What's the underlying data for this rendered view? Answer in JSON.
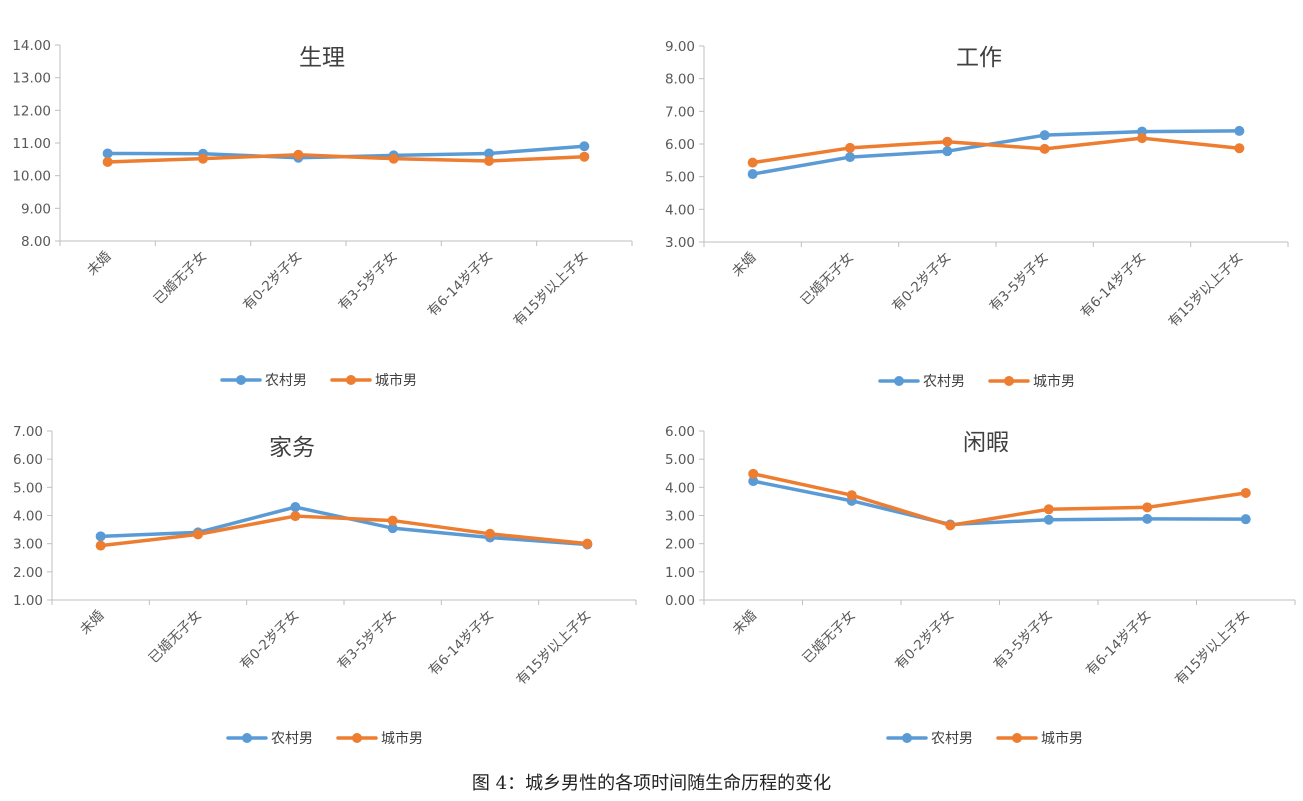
{
  "colors": {
    "rural": "#5b9bd5",
    "urban": "#ed7d31",
    "axis": "#bfbfbf",
    "text": "#595959"
  },
  "chart_data": [
    {
      "type": "line",
      "title": "生理",
      "categories": [
        "未婚",
        "已婚无子女",
        "有0-2岁子女",
        "有3-5岁子女",
        "有6-14岁子女",
        "有15岁以上子女"
      ],
      "ylim": [
        8,
        14
      ],
      "yticks": [
        "8.00",
        "9.00",
        "10.00",
        "11.00",
        "12.00",
        "13.00",
        "14.00"
      ],
      "grid": false,
      "legend": "bottom",
      "series": [
        {
          "name": "农村男",
          "values": [
            10.68,
            10.67,
            10.55,
            10.62,
            10.68,
            10.9
          ]
        },
        {
          "name": "城市男",
          "values": [
            10.42,
            10.52,
            10.64,
            10.52,
            10.45,
            10.58
          ]
        }
      ]
    },
    {
      "type": "line",
      "title": "工作",
      "categories": [
        "未婚",
        "已婚无子女",
        "有0-2岁子女",
        "有3-5岁子女",
        "有6-14岁子女",
        "有15岁以上子女"
      ],
      "ylim": [
        3,
        9
      ],
      "yticks": [
        "3.00",
        "4.00",
        "5.00",
        "6.00",
        "7.00",
        "8.00",
        "9.00"
      ],
      "grid": false,
      "legend": "bottom",
      "series": [
        {
          "name": "农村男",
          "values": [
            5.08,
            5.6,
            5.78,
            6.27,
            6.38,
            6.4
          ]
        },
        {
          "name": "城市男",
          "values": [
            5.43,
            5.88,
            6.07,
            5.85,
            6.18,
            5.87
          ]
        }
      ]
    },
    {
      "type": "line",
      "title": "家务",
      "categories": [
        "未婚",
        "已婚无子女",
        "有0-2岁子女",
        "有3-5岁子女",
        "有6-14岁子女",
        "有15岁以上子女"
      ],
      "ylim": [
        1,
        7
      ],
      "yticks": [
        "1.00",
        "2.00",
        "3.00",
        "4.00",
        "5.00",
        "6.00",
        "7.00"
      ],
      "grid": false,
      "legend": "bottom",
      "series": [
        {
          "name": "农村男",
          "values": [
            3.26,
            3.4,
            4.3,
            3.55,
            3.22,
            2.97
          ]
        },
        {
          "name": "城市男",
          "values": [
            2.93,
            3.33,
            3.98,
            3.82,
            3.35,
            3.0
          ]
        }
      ]
    },
    {
      "type": "line",
      "title": "闲暇",
      "categories": [
        "未婚",
        "已婚无子女",
        "有0-2岁子女",
        "有3-5岁子女",
        "有6-14岁子女",
        "有15岁以上子女"
      ],
      "ylim": [
        0,
        6
      ],
      "yticks": [
        "0.00",
        "1.00",
        "2.00",
        "3.00",
        "4.00",
        "5.00",
        "6.00"
      ],
      "grid": false,
      "legend": "bottom",
      "series": [
        {
          "name": "农村男",
          "values": [
            4.22,
            3.52,
            2.68,
            2.85,
            2.88,
            2.87
          ]
        },
        {
          "name": "城市男",
          "values": [
            4.48,
            3.72,
            2.65,
            3.22,
            3.29,
            3.8
          ]
        }
      ]
    }
  ],
  "caption": "图 4：城乡男性的各项时间随生命历程的变化"
}
